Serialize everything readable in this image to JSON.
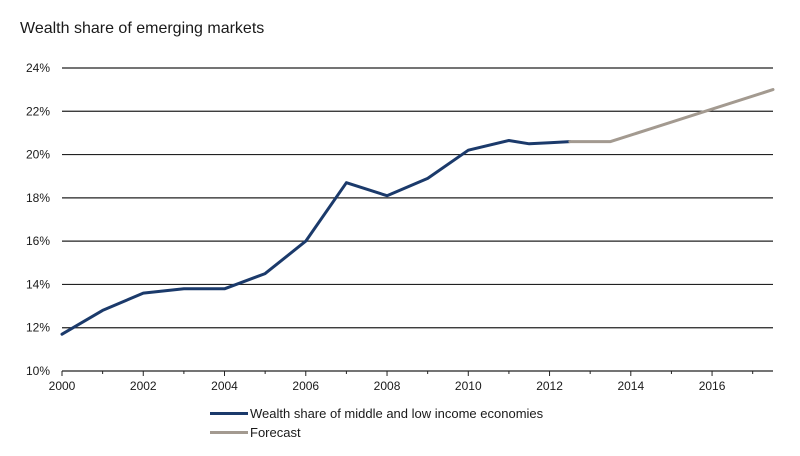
{
  "chart_data": {
    "type": "line",
    "title": "Wealth share of emerging markets",
    "xlabel": "",
    "ylabel": "",
    "xlim": [
      2000,
      2017.5
    ],
    "ylim": [
      10,
      24
    ],
    "x_ticks": [
      "2000",
      "2002",
      "2004",
      "2006",
      "2008",
      "2010",
      "2012",
      "2014",
      "2016"
    ],
    "y_ticks": [
      "10%",
      "12%",
      "14%",
      "16%",
      "18%",
      "20%",
      "22%",
      "24%"
    ],
    "series": [
      {
        "name": "Wealth share of middle and low income economies",
        "color": "#1b3a6b",
        "x": [
          2000,
          2001,
          2002,
          2003,
          2004,
          2005,
          2006,
          2007,
          2008,
          2009,
          2010,
          2011,
          2011.5,
          2012,
          2012.5
        ],
        "y": [
          11.7,
          12.8,
          13.6,
          13.8,
          13.8,
          14.5,
          16.0,
          18.7,
          18.1,
          18.9,
          20.2,
          20.65,
          20.5,
          20.55,
          20.6
        ]
      },
      {
        "name": "Forecast",
        "color": "#a39a90",
        "x": [
          2012.5,
          2013.5,
          2017.5
        ],
        "y": [
          20.6,
          20.6,
          23.0
        ]
      }
    ]
  }
}
